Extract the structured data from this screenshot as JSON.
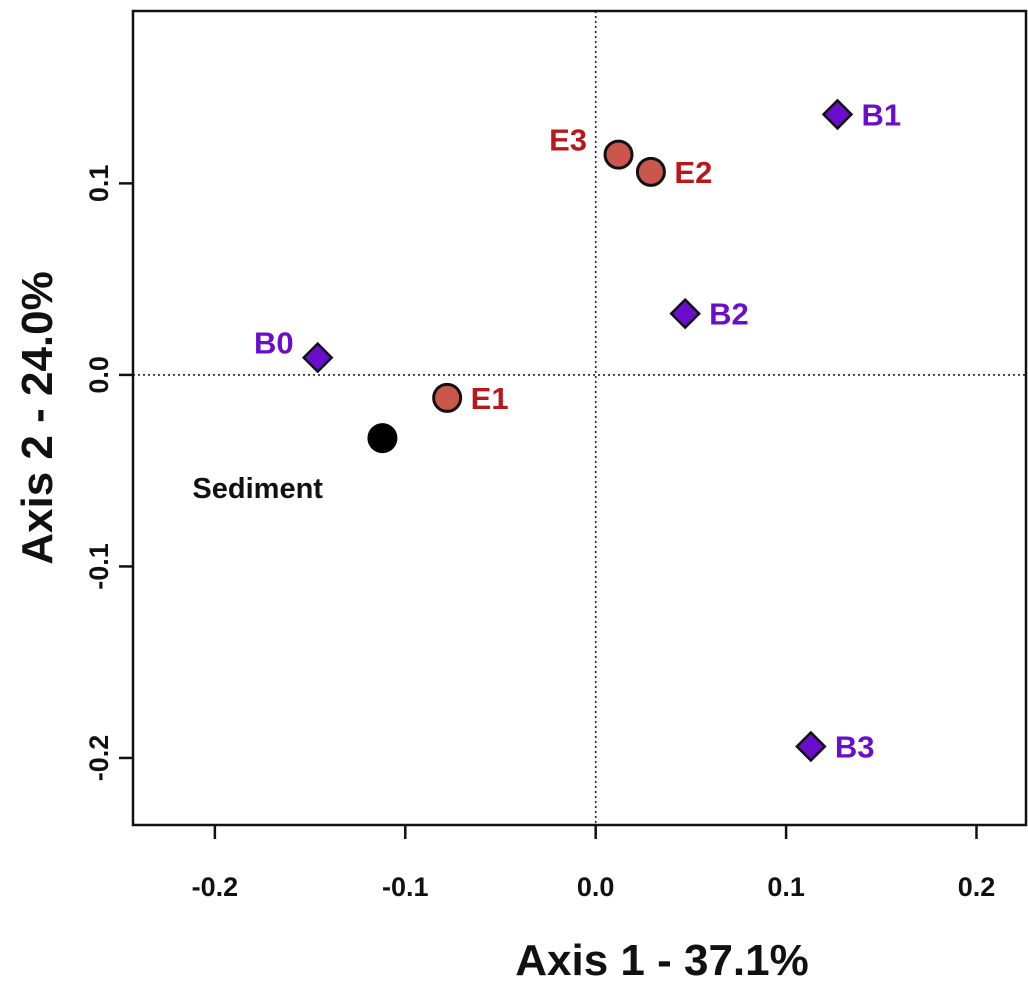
{
  "chart_data": {
    "type": "scatter",
    "xlabel": "Axis 1 - 37.1%",
    "ylabel": "Axis 2 - 24.0%",
    "xlim": [
      -0.243,
      0.226
    ],
    "ylim": [
      -0.235,
      0.19
    ],
    "x_ticks": [
      -0.2,
      -0.1,
      0.0,
      0.1,
      0.2
    ],
    "x_tick_labels": [
      "-0.2",
      "-0.1",
      "0.0",
      "0.1",
      "0.2"
    ],
    "y_ticks": [
      -0.2,
      -0.1,
      0.0,
      0.1
    ],
    "y_tick_labels": [
      "-0.2",
      "-0.1",
      "0.0",
      "0.1"
    ],
    "reference_lines": {
      "x": 0,
      "y": 0,
      "style": "dotted"
    },
    "grid": false,
    "legend": false,
    "colors": {
      "B": "#6a0dcc",
      "E_fill": "#c9574d",
      "E_label": "#b8171c",
      "Sediment": "#000000",
      "Sediment_label": "#111111"
    },
    "series": [
      {
        "group": "B",
        "marker": "diamond",
        "points": [
          {
            "label": "B0",
            "x": -0.146,
            "y": 0.009,
            "label_pos": "left"
          },
          {
            "label": "B1",
            "x": 0.127,
            "y": 0.136,
            "label_pos": "right"
          },
          {
            "label": "B2",
            "x": 0.047,
            "y": 0.032,
            "label_pos": "right"
          },
          {
            "label": "B3",
            "x": 0.113,
            "y": -0.194,
            "label_pos": "right"
          }
        ]
      },
      {
        "group": "E",
        "marker": "circle",
        "points": [
          {
            "label": "E1",
            "x": -0.078,
            "y": -0.012,
            "label_pos": "right"
          },
          {
            "label": "E2",
            "x": 0.029,
            "y": 0.106,
            "label_pos": "right"
          },
          {
            "label": "E3",
            "x": 0.012,
            "y": 0.115,
            "label_pos": "left-above"
          }
        ]
      },
      {
        "group": "Sediment",
        "marker": "filled-circle",
        "points": [
          {
            "label": "Sediment",
            "x": -0.112,
            "y": -0.033,
            "label_pos": "below-left"
          }
        ]
      }
    ]
  }
}
